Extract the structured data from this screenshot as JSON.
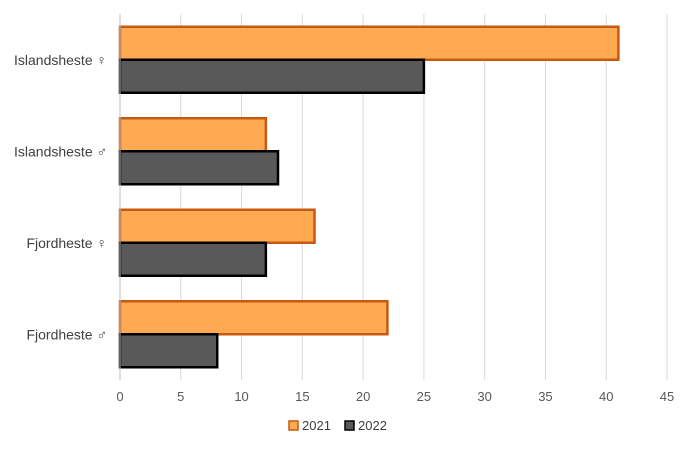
{
  "chart_data": {
    "type": "bar",
    "orientation": "horizontal",
    "title": "",
    "xlabel": "",
    "ylabel": "",
    "categories": [
      "Islandsheste ♀",
      "Islandsheste ♂",
      "Fjordheste ♀",
      "Fjordheste ♂"
    ],
    "series": [
      {
        "name": "2021",
        "values": [
          41,
          12,
          16,
          22
        ],
        "fill": "#FFA952",
        "stroke": "#C55A11"
      },
      {
        "name": "2022",
        "values": [
          25,
          13,
          12,
          8
        ],
        "fill": "#595959",
        "stroke": "#000000"
      }
    ],
    "xlim": [
      0,
      45
    ],
    "x_ticks": [
      "0",
      "5",
      "10",
      "15",
      "20",
      "25",
      "30",
      "35",
      "40",
      "45"
    ],
    "grid": true,
    "legend_position": "bottom"
  }
}
